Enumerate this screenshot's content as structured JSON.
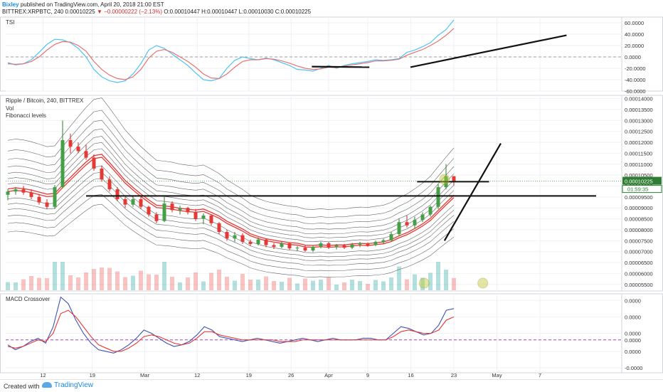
{
  "header": {
    "author": "Bixley",
    "published": "published on TradingView.com, April 20, 2018 21:00 EST",
    "symbol": "BITTREX:XRPBTC, 240",
    "last": "0.00010225",
    "change": "−0.00000222 (−2.13%)",
    "ohlc": "O:0.00010447 H:0.00010447 L:0.00010030 C:0.00010225"
  },
  "footer": {
    "created": "Created with",
    "brand": "TradingView"
  },
  "colors": {
    "candle_up": "#26a69a",
    "candle_down": "#ef5350",
    "ma": "#e53935",
    "band": "#333333",
    "tsi_blue": "#4fc3f7",
    "tsi_pink": "#e57373",
    "macd_blue": "#3f51b5",
    "macd_red": "#e53935",
    "price_label": "#2e7d32"
  },
  "chart_data": [
    {
      "type": "line",
      "pane": "TSI",
      "title": "TSI",
      "y_ticks": [
        "60.0000",
        "40.0000",
        "20.0000",
        "0.0000",
        "-20.0000",
        "-40.0000",
        "-60.0000"
      ],
      "ylim": [
        -60,
        70
      ],
      "series": [
        {
          "name": "",
          "color": "#4fc3f7",
          "values": [
            -10,
            -14,
            -12,
            -5,
            8,
            22,
            31,
            30,
            25,
            15,
            0,
            -22,
            -35,
            -42,
            -45,
            -42,
            -30,
            -12,
            12,
            20,
            15,
            5,
            -5,
            -15,
            -28,
            -40,
            -42,
            -38,
            -20,
            -6,
            0,
            -3,
            -5,
            -2,
            -5,
            -10,
            -15,
            -22,
            -23,
            -25,
            -20,
            -15,
            -20,
            -15,
            -12,
            -10,
            -8,
            -5,
            -6,
            -5,
            -3,
            8,
            12,
            18,
            25,
            38,
            48,
            65
          ]
        },
        {
          "name": "",
          "color": "#e57373",
          "values": [
            -12,
            -13,
            -12,
            -8,
            0,
            12,
            22,
            27,
            26,
            20,
            10,
            -8,
            -22,
            -32,
            -38,
            -40,
            -35,
            -22,
            -2,
            10,
            13,
            8,
            0,
            -8,
            -18,
            -30,
            -37,
            -38,
            -30,
            -18,
            -8,
            -5,
            -5,
            -3,
            -4,
            -7,
            -11,
            -16,
            -20,
            -22,
            -21,
            -18,
            -19,
            -16,
            -14,
            -12,
            -10,
            -7,
            -7,
            -6,
            -4,
            3,
            8,
            13,
            20,
            28,
            38,
            50
          ]
        }
      ],
      "annotations": [
        {
          "type": "trendline",
          "x": [
            18.5,
            22
          ],
          "y": [
            -17,
            -18
          ]
        },
        {
          "type": "trendline",
          "x": [
            24.5,
            34
          ],
          "y": [
            -18,
            38
          ]
        }
      ]
    },
    {
      "type": "candlestick",
      "pane": "price",
      "title": "Ripple / Bitcoin, 240, BITTREX",
      "legend": [
        "Vol",
        "Fibonacci levels"
      ],
      "x_ticks": [
        "12",
        "19",
        "Mar",
        "12",
        "19",
        "26",
        "Apr",
        "9",
        "16",
        "23",
        "May",
        "7"
      ],
      "y_ticks": [
        "0.00014000",
        "0.00013500",
        "0.00013000",
        "0.00012500",
        "0.00012000",
        "0.00011500",
        "0.00011000",
        "0.00010500",
        "0.00010000",
        "0.00009500",
        "0.00009000",
        "0.00008500",
        "0.00008000",
        "0.00007500",
        "0.00007000",
        "0.00006500",
        "0.00006000",
        "0.00005500"
      ],
      "ylim": [
        5.2e-05,
        0.0001415
      ],
      "last_price": "0.00010225",
      "countdown": "01:59:35",
      "candles": [
        {
          "o": 9.6e-05,
          "h": 9.85e-05,
          "l": 9.35e-05,
          "c": 9.75e-05
        },
        {
          "o": 9.75e-05,
          "h": 9.95e-05,
          "l": 9.6e-05,
          "c": 9.85e-05
        },
        {
          "o": 9.85e-05,
          "h": 0.0001,
          "l": 9.6e-05,
          "c": 9.7e-05
        },
        {
          "o": 9.7e-05,
          "h": 9.85e-05,
          "l": 9.4e-05,
          "c": 9.5e-05
        },
        {
          "o": 9.5e-05,
          "h": 9.6e-05,
          "l": 9.15e-05,
          "c": 9.25e-05
        },
        {
          "o": 9.25e-05,
          "h": 9.4e-05,
          "l": 8.95e-05,
          "c": 9.05e-05
        },
        {
          "o": 9.05e-05,
          "h": 0.0001005,
          "l": 8.95e-05,
          "c": 9.95e-05
        },
        {
          "o": 9.95e-05,
          "h": 0.00013,
          "l": 9.9e-05,
          "c": 0.000121
        },
        {
          "o": 0.000121,
          "h": 0.000124,
          "l": 0.000115,
          "c": 0.000118
        },
        {
          "o": 0.000118,
          "h": 0.00012,
          "l": 0.000115,
          "c": 0.000116
        },
        {
          "o": 0.000116,
          "h": 0.000119,
          "l": 0.000112,
          "c": 0.000113
        },
        {
          "o": 0.000113,
          "h": 0.0001145,
          "l": 0.000107,
          "c": 0.000108
        },
        {
          "o": 0.000108,
          "h": 0.0001095,
          "l": 0.000102,
          "c": 0.000103
        },
        {
          "o": 0.000103,
          "h": 0.0001045,
          "l": 9.75e-05,
          "c": 9.85e-05
        },
        {
          "o": 9.85e-05,
          "h": 9.95e-05,
          "l": 9.3e-05,
          "c": 9.4e-05
        },
        {
          "o": 9.4e-05,
          "h": 9.5e-05,
          "l": 9e-05,
          "c": 9.15e-05
        },
        {
          "o": 9.15e-05,
          "h": 9.55e-05,
          "l": 9.05e-05,
          "c": 9.4e-05
        },
        {
          "o": 9.4e-05,
          "h": 9.5e-05,
          "l": 8.95e-05,
          "c": 9.05e-05
        },
        {
          "o": 9.05e-05,
          "h": 9.1e-05,
          "l": 8.6e-05,
          "c": 8.7e-05
        },
        {
          "o": 8.7e-05,
          "h": 8.8e-05,
          "l": 8.3e-05,
          "c": 8.4e-05
        },
        {
          "o": 8.4e-05,
          "h": 9.5e-05,
          "l": 8.35e-05,
          "c": 9.2e-05
        },
        {
          "o": 9.2e-05,
          "h": 9.3e-05,
          "l": 8.8e-05,
          "c": 8.9e-05
        },
        {
          "o": 8.9e-05,
          "h": 9.1e-05,
          "l": 8.7e-05,
          "c": 9e-05
        },
        {
          "o": 9e-05,
          "h": 9.05e-05,
          "l": 8.7e-05,
          "c": 8.8e-05
        },
        {
          "o": 8.8e-05,
          "h": 8.95e-05,
          "l": 8.4e-05,
          "c": 8.5e-05
        },
        {
          "o": 8.5e-05,
          "h": 8.75e-05,
          "l": 8.25e-05,
          "c": 8.65e-05
        },
        {
          "o": 8.65e-05,
          "h": 8.7e-05,
          "l": 8.2e-05,
          "c": 8.3e-05
        },
        {
          "o": 8.3e-05,
          "h": 8.35e-05,
          "l": 7.8e-05,
          "c": 7.9e-05
        },
        {
          "o": 7.9e-05,
          "h": 8e-05,
          "l": 7.5e-05,
          "c": 7.6e-05
        },
        {
          "o": 7.6e-05,
          "h": 7.9e-05,
          "l": 7.45e-05,
          "c": 7.75e-05
        },
        {
          "o": 7.75e-05,
          "h": 7.85e-05,
          "l": 7.35e-05,
          "c": 7.45e-05
        },
        {
          "o": 7.45e-05,
          "h": 7.55e-05,
          "l": 7.25e-05,
          "c": 7.35e-05
        },
        {
          "o": 7.35e-05,
          "h": 7.65e-05,
          "l": 7.28e-05,
          "c": 7.55e-05
        },
        {
          "o": 7.55e-05,
          "h": 7.6e-05,
          "l": 7.2e-05,
          "c": 7.3e-05
        },
        {
          "o": 7.3e-05,
          "h": 7.4e-05,
          "l": 7.12e-05,
          "c": 7.22e-05
        },
        {
          "o": 7.22e-05,
          "h": 7.45e-05,
          "l": 7.15e-05,
          "c": 7.38e-05
        },
        {
          "o": 7.38e-05,
          "h": 7.42e-05,
          "l": 7.08e-05,
          "c": 7.15e-05
        },
        {
          "o": 7.15e-05,
          "h": 7.25e-05,
          "l": 7.02e-05,
          "c": 7.18e-05
        },
        {
          "o": 7.18e-05,
          "h": 7.3e-05,
          "l": 7e-05,
          "c": 7.05e-05
        },
        {
          "o": 7.05e-05,
          "h": 7.28e-05,
          "l": 6.98e-05,
          "c": 7.22e-05
        },
        {
          "o": 7.22e-05,
          "h": 7.45e-05,
          "l": 7.15e-05,
          "c": 7.38e-05
        },
        {
          "o": 7.38e-05,
          "h": 7.45e-05,
          "l": 7.12e-05,
          "c": 7.2e-05
        },
        {
          "o": 7.2e-05,
          "h": 7.35e-05,
          "l": 7.1e-05,
          "c": 7.28e-05
        },
        {
          "o": 7.28e-05,
          "h": 7.35e-05,
          "l": 7.12e-05,
          "c": 7.18e-05
        },
        {
          "o": 7.18e-05,
          "h": 7.4e-05,
          "l": 7.12e-05,
          "c": 7.32e-05
        },
        {
          "o": 7.32e-05,
          "h": 7.45e-05,
          "l": 7.2e-05,
          "c": 7.38e-05
        },
        {
          "o": 7.38e-05,
          "h": 7.42e-05,
          "l": 7.22e-05,
          "c": 7.3e-05
        },
        {
          "o": 7.3e-05,
          "h": 7.5e-05,
          "l": 7.25e-05,
          "c": 7.45e-05
        },
        {
          "o": 7.45e-05,
          "h": 7.6e-05,
          "l": 7.35e-05,
          "c": 7.52e-05
        },
        {
          "o": 7.52e-05,
          "h": 7.9e-05,
          "l": 7.45e-05,
          "c": 7.8e-05
        },
        {
          "o": 7.8e-05,
          "h": 8.5e-05,
          "l": 7.7e-05,
          "c": 8.35e-05
        },
        {
          "o": 8.35e-05,
          "h": 8.65e-05,
          "l": 8.1e-05,
          "c": 8.2e-05
        },
        {
          "o": 8.2e-05,
          "h": 8.6e-05,
          "l": 8.05e-05,
          "c": 8.45e-05
        },
        {
          "o": 8.45e-05,
          "h": 8.8e-05,
          "l": 8.35e-05,
          "c": 8.7e-05
        },
        {
          "o": 8.7e-05,
          "h": 9.1e-05,
          "l": 8.6e-05,
          "c": 9.05e-05
        },
        {
          "o": 9.05e-05,
          "h": 0.000101,
          "l": 8.95e-05,
          "c": 9.95e-05
        },
        {
          "o": 9.95e-05,
          "h": 0.00011,
          "l": 9.85e-05,
          "c": 0.0001045
        },
        {
          "o": 0.0001045,
          "h": 0.0001045,
          "l": 0.0001003,
          "c": 0.00010225
        }
      ],
      "annotations": [
        {
          "type": "horizontal",
          "y": 9.55e-05,
          "label": ""
        },
        {
          "type": "horizontal",
          "y": 0.000102,
          "label": ""
        },
        {
          "type": "trendline",
          "x": [
            52.5,
            58
          ],
          "y": [
            7.5e-05,
            0.0001195
          ]
        }
      ]
    },
    {
      "type": "line",
      "pane": "MACD",
      "title": "MACD Crossover",
      "y_ticks": [
        "0.0000",
        "0.0000",
        "0.0000",
        "0.0000",
        "0.0000",
        "-0.0000"
      ],
      "ylim": [
        -20,
        28
      ],
      "series": [
        {
          "name": "",
          "color": "#3f51b5",
          "values": [
            -3,
            -6,
            -4,
            -1,
            1,
            -2,
            8,
            26,
            22,
            12,
            4,
            -2,
            -6,
            -7,
            -8,
            -6,
            -3,
            1,
            6,
            4,
            1,
            -2,
            -4,
            -3,
            -1,
            3,
            8,
            6,
            2,
            1,
            0,
            -1,
            0,
            1,
            0,
            -1,
            -2,
            -1,
            0,
            1,
            0,
            -1,
            0,
            1,
            0,
            0,
            0,
            1,
            1,
            0,
            0,
            4,
            8,
            7,
            5,
            3,
            4,
            9,
            18,
            19
          ]
        },
        {
          "name": "",
          "color": "#e53935",
          "values": [
            -4,
            -5,
            -4,
            -2,
            0,
            -1,
            4,
            16,
            18,
            14,
            8,
            2,
            -3,
            -5,
            -7,
            -7,
            -5,
            -2,
            2,
            3,
            2,
            0,
            -2,
            -3,
            -2,
            1,
            5,
            5,
            3,
            2,
            1,
            0,
            0,
            0,
            0,
            0,
            -1,
            -1,
            -1,
            0,
            0,
            0,
            0,
            0,
            0,
            0,
            0,
            0,
            0,
            0,
            0,
            2,
            5,
            6,
            5,
            4,
            4,
            6,
            12,
            14
          ]
        }
      ]
    }
  ]
}
